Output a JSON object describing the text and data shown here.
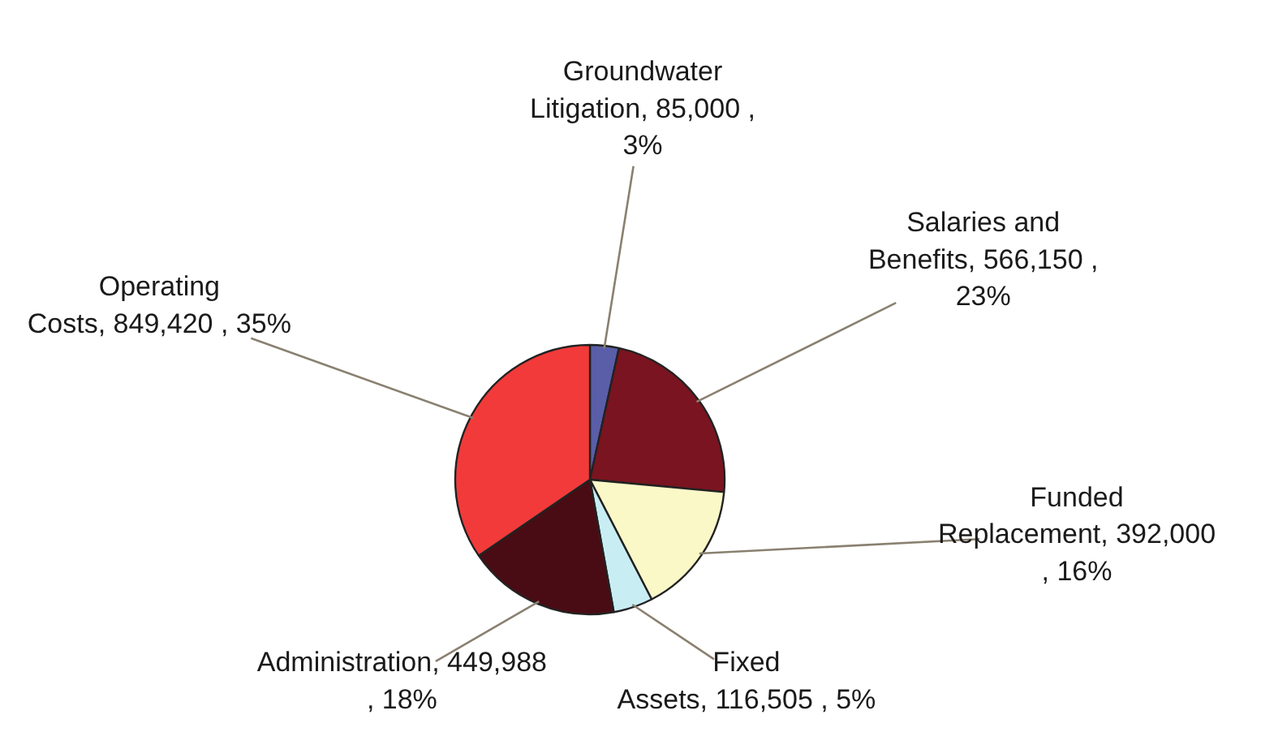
{
  "chart_data": {
    "type": "pie",
    "categories": [
      "Groundwater Litigation",
      "Salaries and Benefits",
      "Funded Replacement",
      "Fixed Assets",
      "Administration",
      "Operating Costs"
    ],
    "values": [
      85000,
      566150,
      392000,
      116505,
      449988,
      849420
    ],
    "colors": [
      "#5a5ea8",
      "#7a1420",
      "#fbf8c8",
      "#c8eef4",
      "#4a0c14",
      "#f23a3a"
    ],
    "value_labels": [
      "85,000 , 3%",
      "566,150 , 23%",
      "392,000 , 16%",
      "116,505 , 5%",
      "449,988 , 18%",
      "849,420 , 35%"
    ]
  }
}
